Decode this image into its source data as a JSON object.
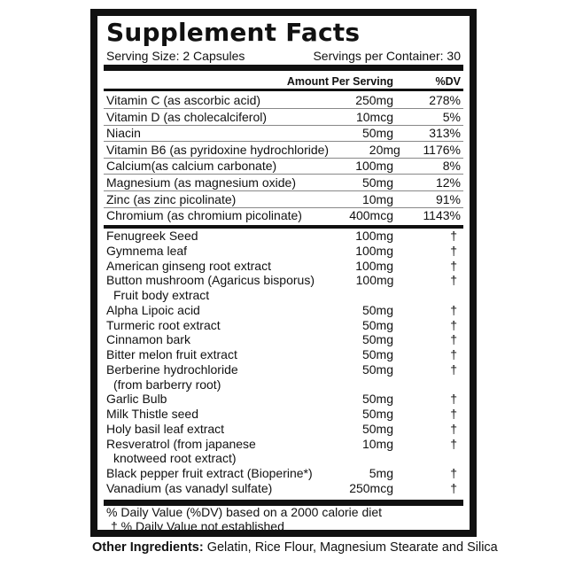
{
  "title": "Supplement Facts",
  "serving_size": "Serving Size: 2 Capsules",
  "servings_per_container": "Servings per Container: 30",
  "header": {
    "amount": "Amount Per Serving",
    "dv": "%DV"
  },
  "nutrients": [
    {
      "name": "Vitamin C (as ascorbic acid)",
      "amount": "250mg",
      "dv": "278%"
    },
    {
      "name": "Vitamin D (as cholecalciferol)",
      "amount": "10mcg",
      "dv": "5%"
    },
    {
      "name": "Niacin",
      "amount": "50mg",
      "dv": "313%"
    },
    {
      "name": "Vitamin B6 (as pyridoxine hydrochloride)",
      "amount": "20mg",
      "dv": "1176%"
    },
    {
      "name": "Calcium(as calcium carbonate)",
      "amount": "100mg",
      "dv": "8%"
    },
    {
      "name": "Magnesium (as magnesium oxide)",
      "amount": "50mg",
      "dv": "12%"
    },
    {
      "name": "Zinc (as zinc picolinate)",
      "amount": "10mg",
      "dv": "91%"
    },
    {
      "name": "Chromium (as chromium picolinate)",
      "amount": "400mcg",
      "dv": "1143%"
    }
  ],
  "ingredients": [
    {
      "name": "Fenugreek Seed",
      "amount": "100mg",
      "dv": "†"
    },
    {
      "name": "Gymnema leaf",
      "amount": "100mg",
      "dv": "†"
    },
    {
      "name": "American ginseng root extract",
      "amount": "100mg",
      "dv": "†"
    },
    {
      "name": "Button mushroom (Agaricus bisporus)",
      "cont": "Fruit body extract",
      "amount": "100mg",
      "dv": "†"
    },
    {
      "name": "Alpha Lipoic acid",
      "amount": "50mg",
      "dv": "†"
    },
    {
      "name": "Turmeric root extract",
      "amount": "50mg",
      "dv": "†"
    },
    {
      "name": "Cinnamon bark",
      "amount": "50mg",
      "dv": "†"
    },
    {
      "name": "Bitter melon fruit extract",
      "amount": "50mg",
      "dv": "†"
    },
    {
      "name": "Berberine hydrochloride",
      "cont": "(from barberry root)",
      "amount": "50mg",
      "dv": "†"
    },
    {
      "name": "Garlic Bulb",
      "amount": "50mg",
      "dv": "†"
    },
    {
      "name": "Milk Thistle seed",
      "amount": "50mg",
      "dv": "†"
    },
    {
      "name": "Holy basil leaf extract",
      "amount": "50mg",
      "dv": "†"
    },
    {
      "name": "Resveratrol (from japanese",
      "cont": "knotweed root extract)",
      "amount": "10mg",
      "dv": "†"
    },
    {
      "name": "Black pepper fruit extract (Bioperine*)",
      "amount": "5mg",
      "dv": "†"
    },
    {
      "name": "Vanadium (as vanadyl sulfate)",
      "amount": "250mcg",
      "dv": "†"
    }
  ],
  "footnotes": {
    "dv_basis": "% Daily Value (%DV) based on a 2000 calorie diet",
    "not_established": "† % Daily Value not established"
  },
  "other_ingredients": {
    "label": "Other Ingredients:",
    "text": " Gelatin, Rice Flour, Magnesium Stearate and Silica"
  }
}
